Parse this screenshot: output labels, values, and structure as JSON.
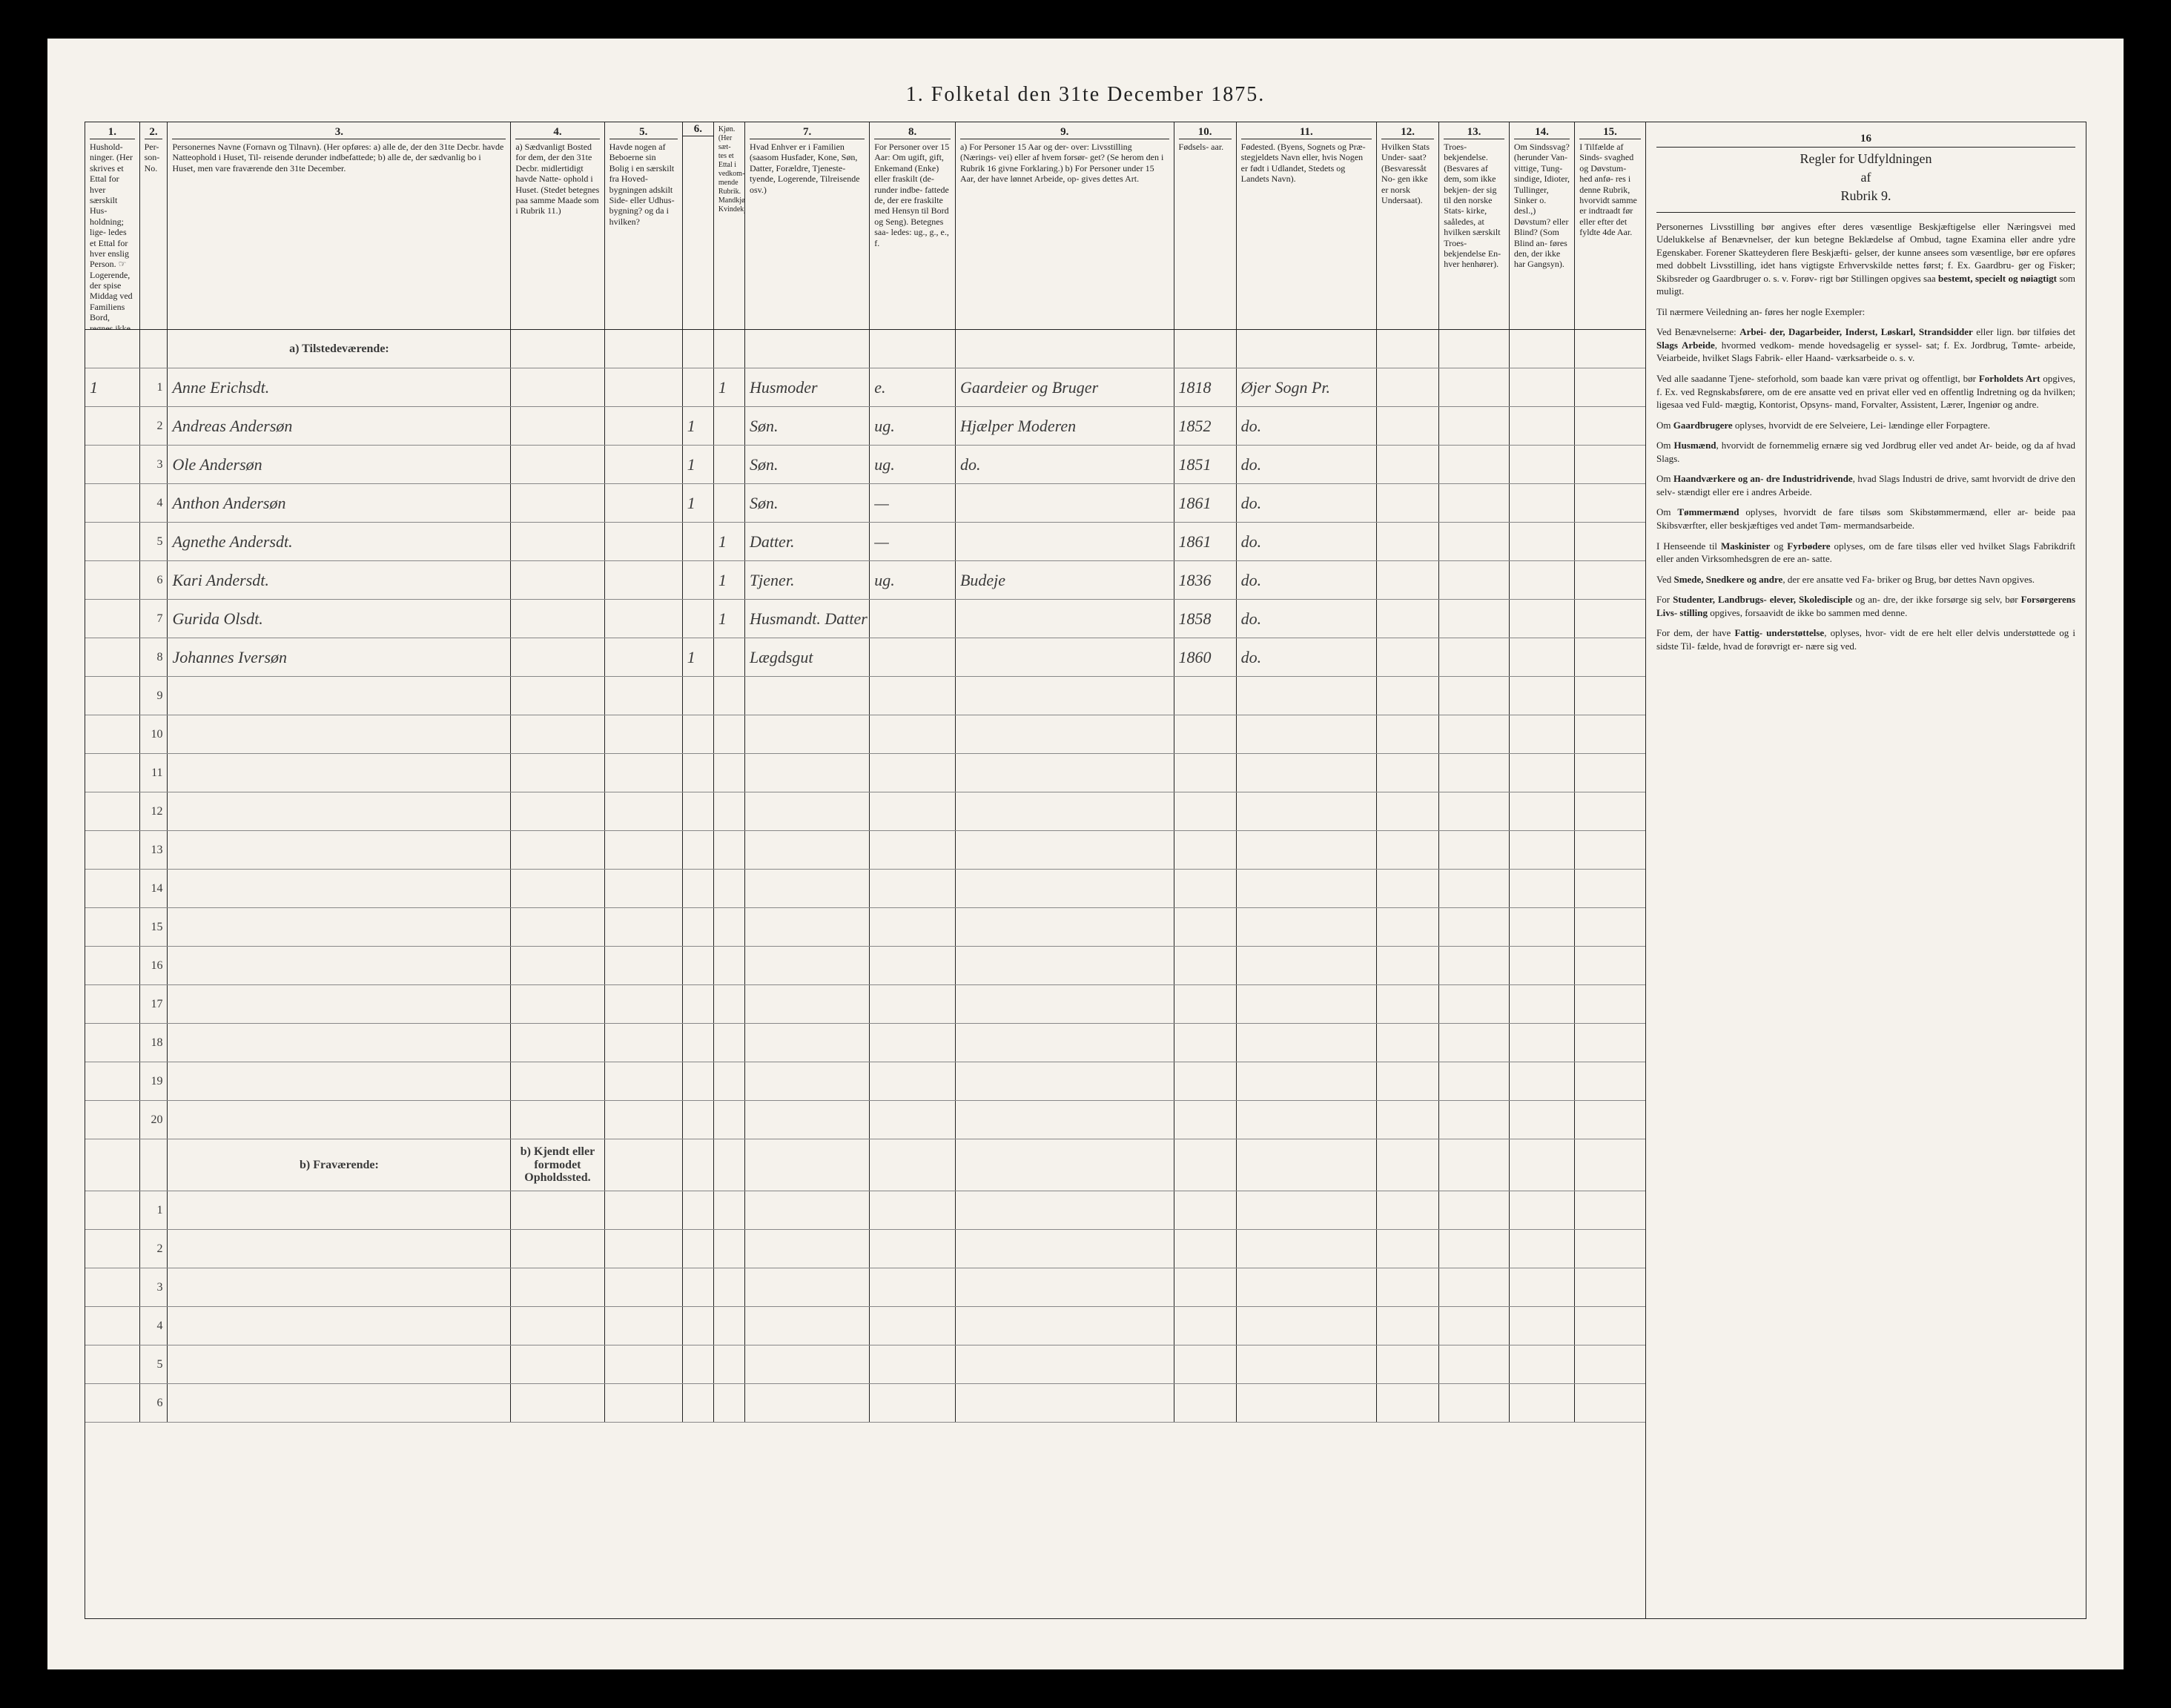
{
  "title": "1. Folketal den 31te December 1875.",
  "columns": {
    "c1": {
      "num": "1.",
      "head": "Hushold-\nninger.\n(Her skrives et Ettal for hver særskilt Hus-\nholdning; lige-\nledes et Ettal for hver enslig Person.\n☞ Logerende, der spise Middag ved Familiens Bord, regnes ikke som enslige)."
    },
    "c2": {
      "num": "2.",
      "head": "Per-\nson-\nNo."
    },
    "c3": {
      "num": "3.",
      "head": "Personernes Navne (Fornavn og Tilnavn).\n(Her opføres:\na) alle de, der den 31te Decbr. havde Natteophold i Huset, Til-\nreisende derunder indbefattede;\nb) alle de, der sædvanlig bo i Huset, men vare fraværende den 31te December."
    },
    "c4": {
      "num": "4.",
      "head": "a) Sædvanligt Bosted for dem, der den 31te Decbr. midlertidigt havde Natte-\nophold i Huset.\n(Stedet betegnes paa samme Maade som i Rubrik 11.)"
    },
    "c5": {
      "num": "5.",
      "head": "Havde nogen af Beboerne sin Bolig i en særskilt fra Hoved-\nbygningen adskilt Side-\neller Udhus-\nbygning? og da i hvilken?"
    },
    "c6": {
      "num": "6.",
      "head": "Kjøn.\n(Her sæt-\ntes et Ettal i vedkom-\nmende Rubrik.\nMandkjøn.\nKvindekjøn."
    },
    "c7": {
      "num": "7.",
      "head": "Hvad Enhver er i Familien\n(saasom Husfader, Kone, Søn, Datter, Forældre, Tjeneste-\ntyende, Logerende, Tilreisende osv.)"
    },
    "c8": {
      "num": "8.",
      "head": "For Personer over 15 Aar: Om ugift, gift, Enkemand (Enke) eller fraskilt (de-\nrunder indbe-\nfattede de, der ere fraskilte med Hensyn til Bord og Seng).\nBetegnes saa-\nledes: ug., g., e., f."
    },
    "c9": {
      "num": "9.",
      "head": "a) For Personer 15 Aar og der-\nover: Livsstilling (Nærings-\nvei) eller af hvem forsør-\nget? (Se herom den i Rubrik 16 givne Forklaring.)\nb) For Personer under 15 Aar, der have lønnet Arbeide, op-\ngives dettes Art."
    },
    "c10": {
      "num": "10.",
      "head": "Fødsels-\naar."
    },
    "c11": {
      "num": "11.",
      "head": "Fødested.\n(Byens, Sognets og Præ-\nstegjeldets Navn eller, hvis Nogen er født i Udlandet, Stedets og Landets Navn)."
    },
    "c12": {
      "num": "12.",
      "head": "Hvilken Stats Under-\nsaat?\n(Besvaressåt No-\ngen ikke er norsk Undersaat)."
    },
    "c13": {
      "num": "13.",
      "head": "Troes-\nbekjendelse.\n(Besvares af dem, som ikke bekjen-\nder sig til den norske Stats-\nkirke, saåledes, at hvilken særskilt Troes-\nbekjendelse En-\nhver henhører)."
    },
    "c14": {
      "num": "14.",
      "head": "Om Sindssvag?\n(herunder Van-\nvittige, Tung-\nsindige, Idioter, Tullinger, Sinker o. desl.,)\nDøvstum? eller Blind?\n(Som Blind an-\nføres den, der ikke har Gangsyn)."
    },
    "c15": {
      "num": "15.",
      "head": "I Tilfælde af Sinds-\nsvaghed og Døvstum-\nhed anfø-\nres i denne Rubrik, hvorvidt samme er indtraadt før eller efter det fyldte 4de Aar."
    }
  },
  "section_a": "a) Tilstedeværende:",
  "section_b": "b) Fraværende:",
  "section_b_col4": "b) Kjendt eller formodet Opholdssted.",
  "rows_a": [
    {
      "n": "1",
      "hh": "1",
      "name": "Anne Erichsdt.",
      "c6b": "1",
      "c7": "Husmoder",
      "c8": "e.",
      "c9": "Gaardeier og Bruger",
      "c10": "1818",
      "c11": "Øjer Sogn Pr."
    },
    {
      "n": "2",
      "hh": "",
      "name": "Andreas Andersøn",
      "c6a": "1",
      "c7": "Søn.",
      "c8": "ug.",
      "c9": "Hjælper Moderen",
      "c10": "1852",
      "c11": "do."
    },
    {
      "n": "3",
      "hh": "",
      "name": "Ole Andersøn",
      "c6a": "1",
      "c7": "Søn.",
      "c8": "ug.",
      "c9": "do.",
      "c10": "1851",
      "c11": "do."
    },
    {
      "n": "4",
      "hh": "",
      "name": "Anthon Andersøn",
      "c6a": "1",
      "c7": "Søn.",
      "c8": "—",
      "c9": "",
      "c10": "1861",
      "c11": "do."
    },
    {
      "n": "5",
      "hh": "",
      "name": "Agnethe Andersdt.",
      "c6b": "1",
      "c7": "Datter.",
      "c8": "—",
      "c9": "",
      "c10": "1861",
      "c11": "do."
    },
    {
      "n": "6",
      "hh": "",
      "name": "Kari Andersdt.",
      "c6b": "1",
      "c7": "Tjener.",
      "c8": "ug.",
      "c9": "Budeje",
      "c10": "1836",
      "c11": "do."
    },
    {
      "n": "7",
      "hh": "",
      "name": "Gurida Olsdt.",
      "c6b": "1",
      "c7": "Husmandt. Datter",
      "c8": "",
      "c9": "",
      "c10": "1858",
      "c11": "do."
    },
    {
      "n": "8",
      "hh": "",
      "name": "Johannes Iversøn",
      "c6a": "1",
      "c7": "Lægdsgut",
      "c8": "",
      "c9": "",
      "c10": "1860",
      "c11": "do."
    }
  ],
  "empty_a": [
    "9",
    "10",
    "11",
    "12",
    "13",
    "14",
    "15",
    "16",
    "17",
    "18",
    "19",
    "20"
  ],
  "empty_b": [
    "1",
    "2",
    "3",
    "4",
    "5",
    "6"
  ],
  "right_col": {
    "num": "16",
    "head": "Regler for Udfyldningen\naf\nRubrik 9.",
    "paras": [
      "Personernes Livsstilling bør angives efter deres væsentlige Beskjæftigelse eller Næringsvei med Udelukkelse af Benævnelser, der kun betegne Beklædelse af Ombud, tagne Examina eller andre ydre Egenskaber. Forener Skatteyderen flere Beskjæfti-\ngelser, der kunne ansees som væsentlige, bør ere opføres med dobbelt Livsstilling, idet hans vigtigste Erhvervskilde nettes først; f. Ex. Gaardbru-\nger og Fisker; Skibsreder og Gaardbruger o. s. v. Forøv-\nrigt bør Stillingen opgives saa <b>bestemt, specielt og nøiagtigt</b> som muligt.",
      "Til nærmere Veiledning an-\nføres her nogle Exempler:",
      "Ved Benævnelserne: <b>Arbei-\nder, Dagarbeider, Inderst, Løskarl, Strandsidder</b> eller lign. bør tilføies det <b>Slags Arbeide</b>, hvormed vedkom-\nmende hovedsagelig er syssel-\nsat; f. Ex. Jordbrug, Tømte-\narbeide, Veiarbeide, hvilket Slags Fabrik- eller Haand-\nværksarbeide o. s. v.",
      "Ved alle saadanne Tjene-\nsteforhold, som baade kan være privat og offentligt, bør <b>Forholdets Art</b> opgives, f. Ex. ved Regnskabsførere, om de ere ansatte ved en privat eller ved en offentlig Indretning og da hvilken; ligesaa ved Fuld-\nmægtig, Kontorist, Opsyns-\nmand, Forvalter, Assistent, Lærer, Ingeniør og andre.",
      "Om <b>Gaardbrugere</b> oplyses, hvorvidt de ere Selveiere, Lei-\nlændinge eller Forpagtere.",
      "Om <b>Husmænd</b>, hvorvidt de fornemmelig ernære sig ved Jordbrug eller ved andet Ar-\nbeide, og da af hvad Slags.",
      "Om <b>Haandværkere og an-\ndre Industridrivende</b>, hvad Slags Industri de drive, samt hvorvidt de drive den selv-\nstændigt eller ere i andres Arbeide.",
      "Om <b>Tømmermænd</b> oplyses, hvorvidt de fare tilsøs som Skibstømmermænd, eller ar-\nbeide paa Skibsværfter, eller beskjæftiges ved andet Tøm-\nmermandsarbeide.",
      "I Henseende til <b>Maskinister</b> og <b>Fyrbødere</b> oplyses, om de fare tilsøs eller ved hvilket Slags Fabrikdrift eller anden Virksomhedsgren de ere an-\nsatte.",
      "Ved <b>Smede, Snedkere og andre</b>, der ere ansatte ved Fa-\nbriker og Brug, bør dettes Navn opgives.",
      "For <b>Studenter, Landbrugs-\nelever, Skoledisciple</b> og an-\ndre, der ikke forsørge sig selv, bør <b>Forsørgerens Livs-\nstilling</b> opgives, forsaavidt de ikke bo sammen med denne.",
      "For dem, der have <b>Fattig-\nunderstøttelse</b>, oplyses, hvor-\nvidt de ere helt eller delvis understøttede og i sidste Til-\nfælde, hvad de forøvrigt er-\nnære sig ved."
    ]
  },
  "colors": {
    "paper": "#f5f2ec",
    "ink": "#222222",
    "handwriting": "#3a3a3a",
    "border": "#000000"
  }
}
